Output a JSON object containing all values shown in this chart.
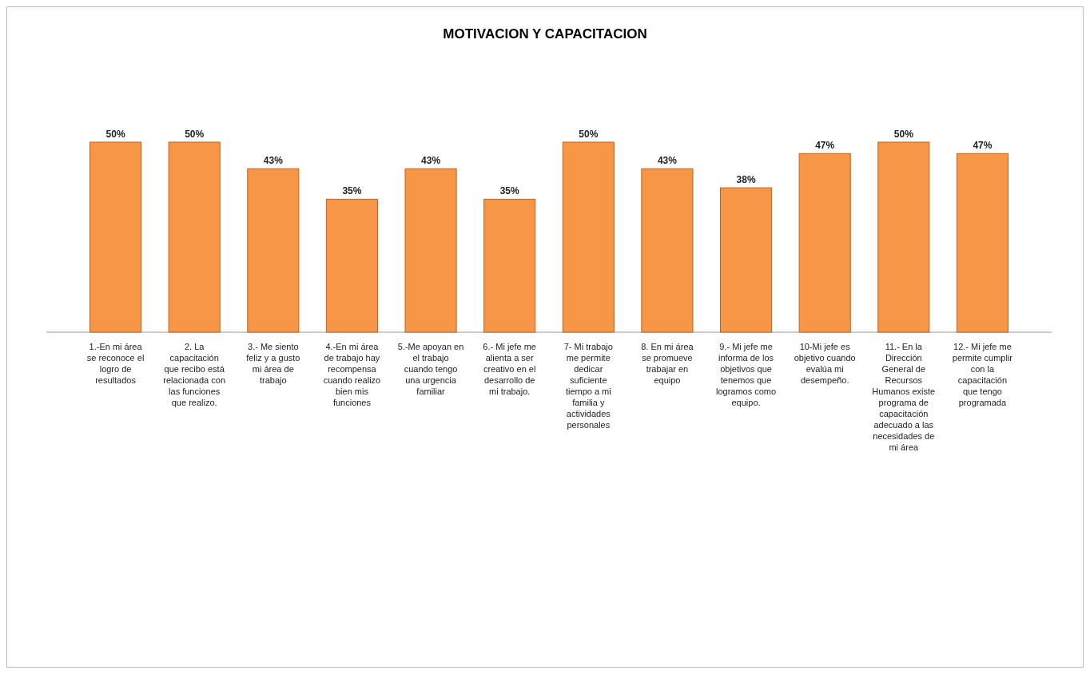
{
  "chart_data": {
    "type": "bar",
    "title": "MOTIVACION Y CAPACITACION",
    "categories": [
      "1.-En mi área se reconoce el logro de resultados",
      "2. La capacitación que recibo está relacionada con las funciones que realizo.",
      "3.- Me siento feliz y a gusto mi área de trabajo",
      "4.-En mi área de trabajo hay recompensa cuando realizo bien mis funciones",
      "5.-Me apoyan en el trabajo cuando tengo una urgencia familiar",
      "6.- Mi jefe me alienta a ser creativo en el desarrollo de mi trabajo.",
      "7- Mi trabajo me permite dedicar suficiente tiempo a mi familia y actividades personales",
      "8. En mi área se promueve trabajar en equipo",
      "9.- Mi jefe me informa de los objetivos que tenemos que logramos como equipo.",
      "10-Mi jefe es objetivo cuando evalúa mi desempeño.",
      "11.- En la Dirección General de Recursos Humanos existe programa de capacitación adecuado a las necesidades de mi área",
      "12.- Mi jefe me permite cumplir con la capacitación que tengo programada"
    ],
    "values": [
      50,
      50,
      43,
      35,
      43,
      35,
      50,
      43,
      38,
      47,
      50,
      47
    ],
    "value_labels": [
      "50%",
      "50%",
      "43%",
      "35%",
      "43%",
      "35%",
      "50%",
      "43%",
      "38%",
      "47%",
      "50%",
      "47%"
    ],
    "color": "#f79646"
  }
}
